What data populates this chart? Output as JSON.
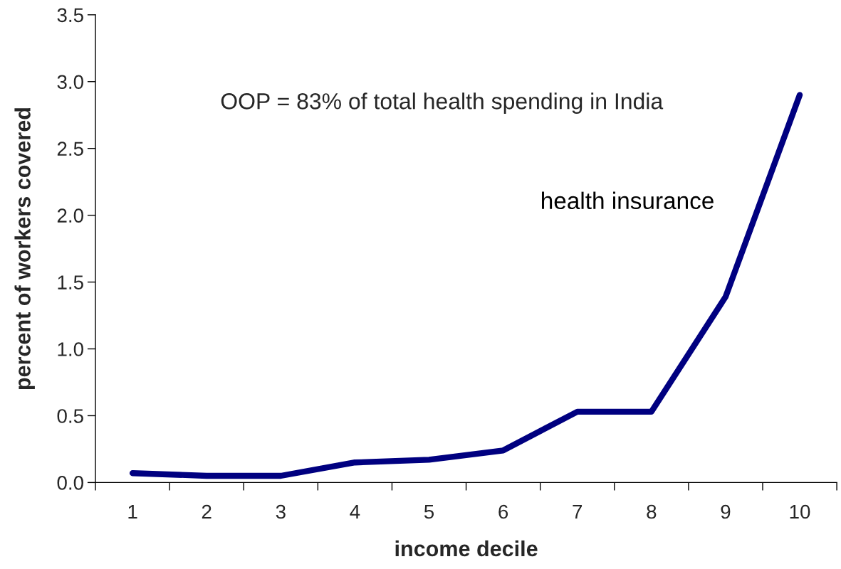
{
  "chart_data": {
    "type": "line",
    "xlabel": "income decile",
    "ylabel": "percent of workers covered",
    "annotations": [
      "OOP = 83% of total health spending in India"
    ],
    "categories": [
      "1",
      "2",
      "3",
      "4",
      "5",
      "6",
      "7",
      "8",
      "9",
      "10"
    ],
    "series": [
      {
        "name": "health insurance",
        "color": "#000080",
        "values": [
          0.07,
          0.05,
          0.05,
          0.15,
          0.17,
          0.24,
          0.53,
          0.53,
          1.39,
          2.9
        ]
      }
    ],
    "ylim": [
      0,
      3.5
    ],
    "yticks": [
      {
        "value": 0,
        "label": "0.0"
      },
      0.5,
      {
        "value": 1,
        "label": "1.0"
      },
      1.5,
      {
        "value": 2,
        "label": "2.0"
      },
      2.5,
      {
        "value": 3,
        "label": "3.0"
      },
      3.5
    ],
    "grid": false,
    "marker": "none",
    "line_style": "solid"
  }
}
